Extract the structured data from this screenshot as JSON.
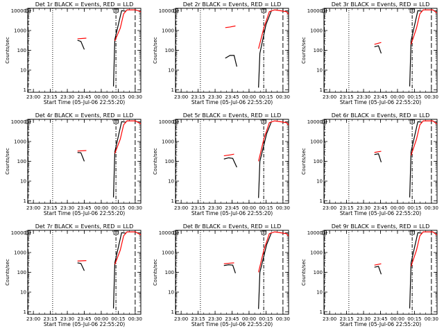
{
  "chart_data": [
    {
      "type": "line",
      "title": "Det 1r BLACK = Events, RED = LLD",
      "xlabel": "Start Time (05-Jul-06 22:55:20)",
      "ylabel": "Counts/sec",
      "x_tick_labels": [
        "23:00",
        "23:15",
        "23:30",
        "23:45",
        "00:00",
        "00:15",
        "00:30"
      ],
      "y_tick_labels": [
        "1",
        "10",
        "100",
        "1000",
        "10000"
      ],
      "xlim": [
        "22:55",
        "00:35"
      ],
      "ylim": [
        1,
        10000
      ],
      "y_scale": "log",
      "series": [
        {
          "name": "Events",
          "color": "#000000",
          "points": [
            [
              23.65,
              320
            ],
            [
              23.7,
              280
            ],
            [
              23.75,
              110
            ]
          ]
        },
        {
          "name": "Events",
          "color": "#000000",
          "points": [
            [
              24.18,
              1.5
            ],
            [
              24.2,
              350
            ],
            [
              24.3,
              10000
            ],
            [
              24.36,
              9500
            ]
          ]
        },
        {
          "name": "LLD",
          "color": "#ff0000",
          "points": [
            [
              23.65,
              380
            ],
            [
              23.78,
              410
            ]
          ]
        },
        {
          "name": "LLD",
          "color": "#ff0000",
          "points": [
            [
              24.2,
              300
            ],
            [
              24.28,
              1300
            ],
            [
              24.33,
              7000
            ],
            [
              24.38,
              11000
            ],
            [
              24.5,
              11000
            ],
            [
              24.58,
              9000
            ],
            [
              24.62,
              6000
            ],
            [
              24.65,
              5200
            ]
          ]
        }
      ]
    },
    {
      "type": "line",
      "title": "Det 2r BLACK = Events, RED = LLD",
      "xlabel": "Start Time (05-Jul-06 22:55:20)",
      "ylabel": "Counts/sec",
      "x_tick_labels": [
        "23:00",
        "23:15",
        "23:30",
        "23:45",
        "00:00",
        "00:15",
        "00:30"
      ],
      "y_tick_labels": [
        "1",
        "10",
        "100",
        "1000",
        "10000"
      ],
      "xlim": [
        "22:55",
        "00:35"
      ],
      "ylim": [
        1,
        10000
      ],
      "y_scale": "log",
      "series": [
        {
          "name": "Events",
          "color": "#000000",
          "points": [
            [
              23.65,
              40
            ],
            [
              23.72,
              55
            ],
            [
              23.78,
              55
            ],
            [
              23.82,
              15
            ]
          ]
        },
        {
          "name": "Events",
          "color": "#000000",
          "points": [
            [
              24.14,
              1.3
            ],
            [
              24.16,
              70
            ],
            [
              24.25,
              2000
            ],
            [
              24.33,
              10000
            ]
          ]
        },
        {
          "name": "LLD",
          "color": "#ff0000",
          "points": [
            [
              23.65,
              1400
            ],
            [
              23.72,
              1500
            ],
            [
              23.8,
              1700
            ]
          ]
        },
        {
          "name": "LLD",
          "color": "#ff0000",
          "points": [
            [
              24.14,
              120
            ],
            [
              24.22,
              1400
            ],
            [
              24.3,
              9000
            ],
            [
              24.38,
              11000
            ],
            [
              24.55,
              9000
            ],
            [
              24.62,
              5000
            ],
            [
              24.65,
              3000
            ]
          ]
        }
      ]
    },
    {
      "type": "line",
      "title": "Det 3r BLACK = Events, RED = LLD",
      "xlabel": "Start Time (05-Jul-06 22:55:20)",
      "ylabel": "Counts/sec",
      "x_tick_labels": [
        "23:00",
        "23:15",
        "23:30",
        "23:45",
        "00:00",
        "00:15",
        "00:30"
      ],
      "y_tick_labels": [
        "1",
        "10",
        "100",
        "1000",
        "10000"
      ],
      "xlim": [
        "22:55",
        "00:35"
      ],
      "ylim": [
        1,
        10000
      ],
      "y_scale": "log",
      "series": [
        {
          "name": "Events",
          "color": "#000000",
          "points": [
            [
              23.66,
              150
            ],
            [
              23.72,
              170
            ],
            [
              23.76,
              70
            ]
          ]
        },
        {
          "name": "Events",
          "color": "#000000",
          "points": [
            [
              24.18,
              1.5
            ],
            [
              24.2,
              300
            ],
            [
              24.3,
              10000
            ],
            [
              24.36,
              9500
            ]
          ]
        },
        {
          "name": "LLD",
          "color": "#ff0000",
          "points": [
            [
              23.66,
              200
            ],
            [
              23.76,
              250
            ]
          ]
        },
        {
          "name": "LLD",
          "color": "#ff0000",
          "points": [
            [
              24.2,
              200
            ],
            [
              24.28,
              1300
            ],
            [
              24.33,
              7000
            ],
            [
              24.38,
              11000
            ],
            [
              24.52,
              11000
            ],
            [
              24.6,
              7000
            ],
            [
              24.65,
              4500
            ]
          ]
        }
      ]
    },
    {
      "type": "line",
      "title": "Det 4r BLACK = Events, RED = LLD",
      "xlabel": "Start Time (05-Jul-06 22:55:20)",
      "ylabel": "Counts/sec",
      "x_tick_labels": [
        "23:00",
        "23:15",
        "23:30",
        "23:45",
        "00:00",
        "00:15",
        "00:30"
      ],
      "y_tick_labels": [
        "1",
        "10",
        "100",
        "1000",
        "10000"
      ],
      "xlim": [
        "22:55",
        "00:35"
      ],
      "ylim": [
        1,
        10000
      ],
      "y_scale": "log",
      "series": [
        {
          "name": "Events",
          "color": "#000000",
          "points": [
            [
              23.65,
              280
            ],
            [
              23.7,
              270
            ],
            [
              23.75,
              100
            ]
          ]
        },
        {
          "name": "Events",
          "color": "#000000",
          "points": [
            [
              24.18,
              1.5
            ],
            [
              24.2,
              300
            ],
            [
              24.3,
              10000
            ],
            [
              24.36,
              9500
            ]
          ]
        },
        {
          "name": "LLD",
          "color": "#ff0000",
          "points": [
            [
              23.65,
              330
            ],
            [
              23.78,
              350
            ]
          ]
        },
        {
          "name": "LLD",
          "color": "#ff0000",
          "points": [
            [
              24.2,
              250
            ],
            [
              24.28,
              1300
            ],
            [
              24.33,
              7000
            ],
            [
              24.38,
              11000
            ],
            [
              24.5,
              11000
            ],
            [
              24.58,
              8000
            ],
            [
              24.63,
              5000
            ]
          ]
        }
      ]
    },
    {
      "type": "line",
      "title": "Det 5r BLACK = Events, RED = LLD",
      "xlabel": "Start Time (05-Jul-06 22:55:20)",
      "ylabel": "Counts/sec",
      "x_tick_labels": [
        "23:00",
        "23:15",
        "23:30",
        "23:45",
        "00:00",
        "00:15",
        "00:30"
      ],
      "y_tick_labels": [
        "1",
        "10",
        "100",
        "1000",
        "10000"
      ],
      "xlim": [
        "22:55",
        "00:35"
      ],
      "ylim": [
        1,
        10000
      ],
      "y_scale": "log",
      "series": [
        {
          "name": "Events",
          "color": "#000000",
          "points": [
            [
              23.63,
              130
            ],
            [
              23.7,
              150
            ],
            [
              23.76,
              140
            ],
            [
              23.82,
              50
            ]
          ]
        },
        {
          "name": "Events",
          "color": "#000000",
          "points": [
            [
              24.14,
              1.4
            ],
            [
              24.16,
              100
            ],
            [
              24.26,
              2500
            ],
            [
              24.33,
              10000
            ]
          ]
        },
        {
          "name": "LLD",
          "color": "#ff0000",
          "points": [
            [
              23.63,
              190
            ],
            [
              23.72,
              210
            ],
            [
              23.78,
              230
            ]
          ]
        },
        {
          "name": "LLD",
          "color": "#ff0000",
          "points": [
            [
              24.14,
              100
            ],
            [
              24.22,
              1400
            ],
            [
              24.3,
              9000
            ],
            [
              24.38,
              11000
            ],
            [
              24.55,
              9000
            ],
            [
              24.62,
              5000
            ],
            [
              24.65,
              3000
            ]
          ]
        }
      ]
    },
    {
      "type": "line",
      "title": "Det 6r BLACK = Events, RED = LLD",
      "xlabel": "Start Time (05-Jul-06 22:55:20)",
      "ylabel": "Counts/sec",
      "x_tick_labels": [
        "23:00",
        "23:15",
        "23:30",
        "23:45",
        "00:00",
        "00:15",
        "00:30"
      ],
      "y_tick_labels": [
        "1",
        "10",
        "100",
        "1000",
        "10000"
      ],
      "xlim": [
        "22:55",
        "00:35"
      ],
      "ylim": [
        1,
        10000
      ],
      "y_scale": "log",
      "series": [
        {
          "name": "Events",
          "color": "#000000",
          "points": [
            [
              23.66,
              220
            ],
            [
              23.72,
              240
            ],
            [
              23.76,
              90
            ]
          ]
        },
        {
          "name": "Events",
          "color": "#000000",
          "points": [
            [
              24.18,
              1.5
            ],
            [
              24.2,
              300
            ],
            [
              24.3,
              10000
            ],
            [
              24.36,
              9500
            ]
          ]
        },
        {
          "name": "LLD",
          "color": "#ff0000",
          "points": [
            [
              23.66,
              280
            ],
            [
              23.76,
              320
            ]
          ]
        },
        {
          "name": "LLD",
          "color": "#ff0000",
          "points": [
            [
              24.2,
              200
            ],
            [
              24.28,
              1300
            ],
            [
              24.33,
              7000
            ],
            [
              24.38,
              11000
            ],
            [
              24.52,
              11000
            ],
            [
              24.6,
              7000
            ],
            [
              24.65,
              4500
            ]
          ]
        }
      ]
    },
    {
      "type": "line",
      "title": "Det 7r BLACK = Events, RED = LLD",
      "xlabel": "Start Time (05-Jul-06 22:55:20)",
      "ylabel": "Counts/sec",
      "x_tick_labels": [
        "23:00",
        "23:15",
        "23:30",
        "23:45",
        "00:00",
        "00:15",
        "00:30"
      ],
      "y_tick_labels": [
        "1",
        "10",
        "100",
        "1000",
        "10000"
      ],
      "xlim": [
        "22:55",
        "00:35"
      ],
      "ylim": [
        1,
        10000
      ],
      "y_scale": "log",
      "series": [
        {
          "name": "Events",
          "color": "#000000",
          "points": [
            [
              23.65,
              300
            ],
            [
              23.7,
              280
            ],
            [
              23.75,
              120
            ]
          ]
        },
        {
          "name": "Events",
          "color": "#000000",
          "points": [
            [
              24.18,
              1.5
            ],
            [
              24.2,
              300
            ],
            [
              24.3,
              10000
            ],
            [
              24.36,
              9500
            ]
          ]
        },
        {
          "name": "LLD",
          "color": "#ff0000",
          "points": [
            [
              23.65,
              370
            ],
            [
              23.78,
              390
            ]
          ]
        },
        {
          "name": "LLD",
          "color": "#ff0000",
          "points": [
            [
              24.2,
              250
            ],
            [
              24.28,
              1300
            ],
            [
              24.33,
              7000
            ],
            [
              24.38,
              11000
            ],
            [
              24.5,
              11000
            ],
            [
              24.58,
              8000
            ],
            [
              24.63,
              5500
            ]
          ]
        }
      ]
    },
    {
      "type": "line",
      "title": "Det 8r BLACK = Events, RED = LLD",
      "xlabel": "Start Time (05-Jul-06 22:55:20)",
      "ylabel": "Counts/sec",
      "x_tick_labels": [
        "23:00",
        "23:15",
        "23:30",
        "23:45",
        "00:00",
        "00:15",
        "00:30"
      ],
      "y_tick_labels": [
        "1",
        "10",
        "100",
        "1000",
        "10000"
      ],
      "xlim": [
        "22:55",
        "00:35"
      ],
      "ylim": [
        1,
        10000
      ],
      "y_scale": "log",
      "series": [
        {
          "name": "Events",
          "color": "#000000",
          "points": [
            [
              23.63,
              220
            ],
            [
              23.7,
              240
            ],
            [
              23.76,
              230
            ],
            [
              23.8,
              90
            ]
          ]
        },
        {
          "name": "Events",
          "color": "#000000",
          "points": [
            [
              24.14,
              1.4
            ],
            [
              24.16,
              100
            ],
            [
              24.26,
              2500
            ],
            [
              24.33,
              10000
            ]
          ]
        },
        {
          "name": "LLD",
          "color": "#ff0000",
          "points": [
            [
              23.63,
              270
            ],
            [
              23.72,
              290
            ],
            [
              23.78,
              300
            ]
          ]
        },
        {
          "name": "LLD",
          "color": "#ff0000",
          "points": [
            [
              24.14,
              100
            ],
            [
              24.22,
              1400
            ],
            [
              24.3,
              9000
            ],
            [
              24.38,
              11000
            ],
            [
              24.55,
              9000
            ],
            [
              24.62,
              5000
            ],
            [
              24.65,
              3000
            ]
          ]
        }
      ]
    },
    {
      "type": "line",
      "title": "Det 9r BLACK = Events, RED = LLD",
      "xlabel": "Start Time (05-Jul-06 22:55:20)",
      "ylabel": "Counts/sec",
      "x_tick_labels": [
        "23:00",
        "23:15",
        "23:30",
        "23:45",
        "00:00",
        "00:15",
        "00:30"
      ],
      "y_tick_labels": [
        "1",
        "10",
        "100",
        "1000",
        "10000"
      ],
      "xlim": [
        "22:55",
        "00:35"
      ],
      "ylim": [
        1,
        10000
      ],
      "y_scale": "log",
      "series": [
        {
          "name": "Events",
          "color": "#000000",
          "points": [
            [
              23.66,
              180
            ],
            [
              23.72,
              200
            ],
            [
              23.76,
              80
            ]
          ]
        },
        {
          "name": "Events",
          "color": "#000000",
          "points": [
            [
              24.18,
              1.5
            ],
            [
              24.2,
              300
            ],
            [
              24.3,
              10000
            ],
            [
              24.36,
              9500
            ]
          ]
        },
        {
          "name": "LLD",
          "color": "#ff0000",
          "points": [
            [
              23.66,
              230
            ],
            [
              23.76,
              270
            ]
          ]
        },
        {
          "name": "LLD",
          "color": "#ff0000",
          "points": [
            [
              24.2,
              200
            ],
            [
              24.28,
              1300
            ],
            [
              24.33,
              7000
            ],
            [
              24.38,
              11000
            ],
            [
              24.52,
              11000
            ],
            [
              24.6,
              7000
            ],
            [
              24.65,
              4500
            ]
          ]
        }
      ]
    }
  ],
  "markers": {
    "dashed": [
      "22:55:20"
    ],
    "dotted": [
      "23:17"
    ],
    "dash_dot": [
      "00:13"
    ],
    "long_dash": [
      "00:30"
    ]
  },
  "colors": {
    "events": "#000000",
    "lld": "#ff0000"
  }
}
